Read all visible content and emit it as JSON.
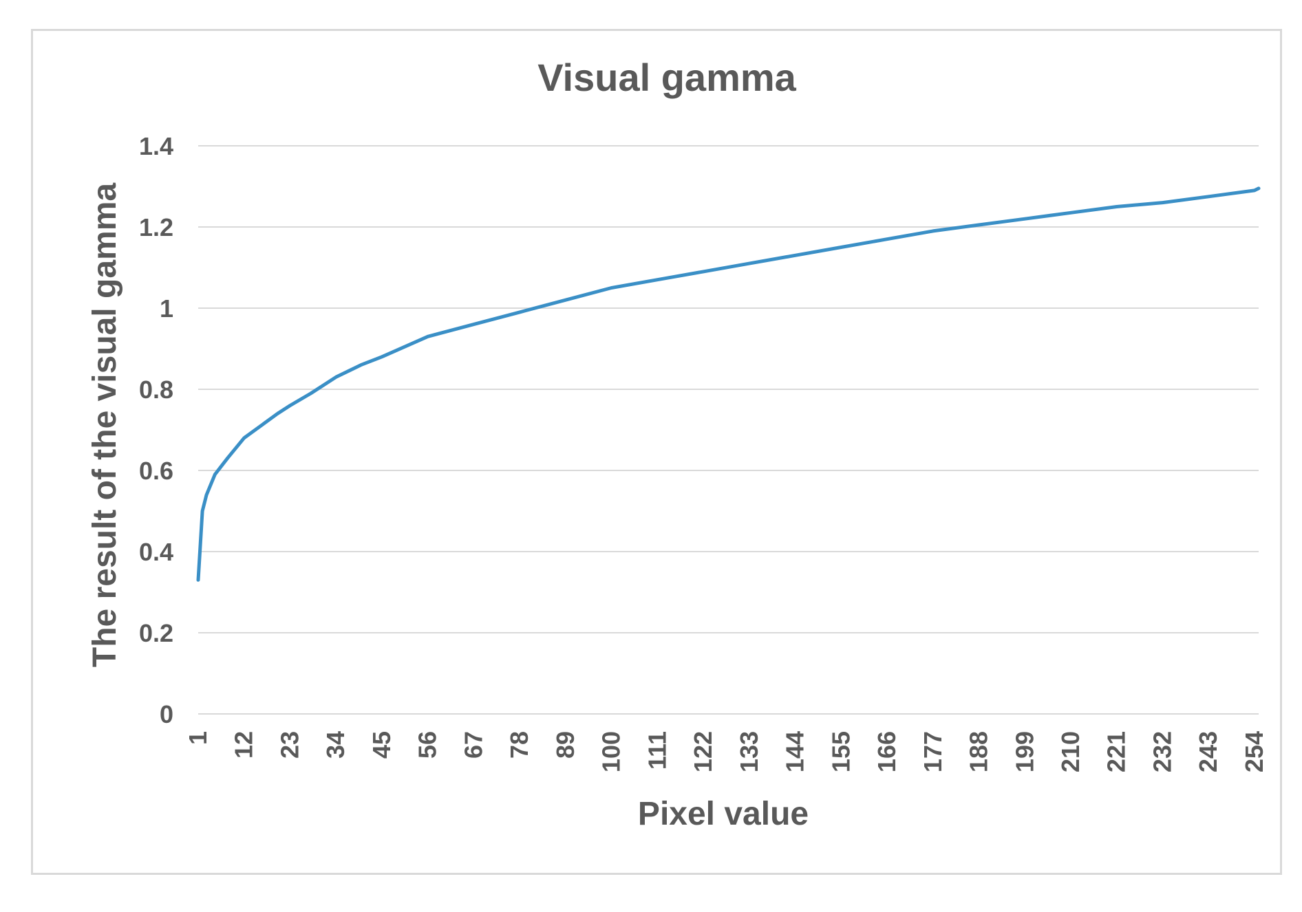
{
  "chart_data": {
    "type": "line",
    "title": "Visual gamma",
    "xlabel": "Pixel value",
    "ylabel": "The result of the visual gamma",
    "ylim": [
      0,
      1.4
    ],
    "yticks": [
      "0",
      "0.2",
      "0.4",
      "0.6",
      "0.8",
      "1",
      "1.2",
      "1.4"
    ],
    "xlim": [
      1,
      255
    ],
    "xticks": [
      "1",
      "12",
      "23",
      "34",
      "45",
      "56",
      "67",
      "78",
      "89",
      "100",
      "111",
      "122",
      "133",
      "144",
      "155",
      "166",
      "177",
      "188",
      "199",
      "210",
      "221",
      "232",
      "243",
      "254"
    ],
    "grid": "horizontal",
    "legend": "none",
    "line_color": "#3a8fc6",
    "series": [
      {
        "x": [
          1,
          2,
          3,
          5,
          8,
          12,
          16,
          20,
          23,
          28,
          34,
          40,
          45,
          56,
          67,
          78,
          89,
          100,
          111,
          122,
          133,
          144,
          155,
          166,
          177,
          188,
          199,
          210,
          221,
          232,
          243,
          254,
          255
        ],
        "values": [
          0.33,
          0.5,
          0.54,
          0.59,
          0.63,
          0.68,
          0.71,
          0.74,
          0.76,
          0.79,
          0.83,
          0.86,
          0.88,
          0.93,
          0.96,
          0.99,
          1.02,
          1.05,
          1.07,
          1.09,
          1.11,
          1.13,
          1.15,
          1.17,
          1.19,
          1.205,
          1.22,
          1.235,
          1.25,
          1.26,
          1.275,
          1.29,
          1.295
        ]
      }
    ]
  }
}
